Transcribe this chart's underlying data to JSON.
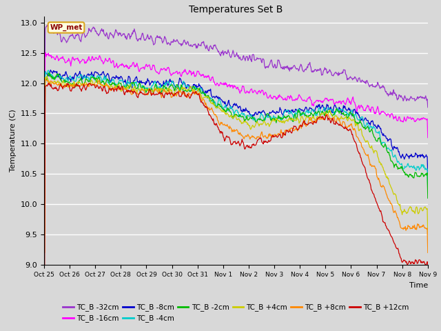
{
  "title": "Temperatures Set B",
  "ylabel": "Temperature (C)",
  "xlabel": "Time",
  "ylim": [
    9.0,
    13.1
  ],
  "fig_facecolor": "#d8d8d8",
  "ax_facecolor": "#d8d8d8",
  "wp_met_label": "WP_met",
  "series": {
    "TC_B -32cm": {
      "color": "#9933CC"
    },
    "TC_B -16cm": {
      "color": "#FF00FF"
    },
    "TC_B -8cm": {
      "color": "#0000CC"
    },
    "TC_B -4cm": {
      "color": "#00CCCC"
    },
    "TC_B -2cm": {
      "color": "#00BB00"
    },
    "TC_B +4cm": {
      "color": "#CCCC00"
    },
    "TC_B +8cm": {
      "color": "#FF8800"
    },
    "TC_B +12cm": {
      "color": "#CC0000"
    }
  },
  "xtick_labels": [
    "Oct 25",
    "Oct 26",
    "Oct 27",
    "Oct 28",
    "Oct 29",
    "Oct 30",
    "Oct 31",
    "Nov 1",
    "Nov 2",
    "Nov 3",
    "Nov 4",
    "Nov 5",
    "Nov 6",
    "Nov 7",
    "Nov 8",
    "Nov 9"
  ],
  "ytick_vals": [
    9.0,
    9.5,
    10.0,
    10.5,
    11.0,
    11.5,
    12.0,
    12.5,
    13.0
  ]
}
